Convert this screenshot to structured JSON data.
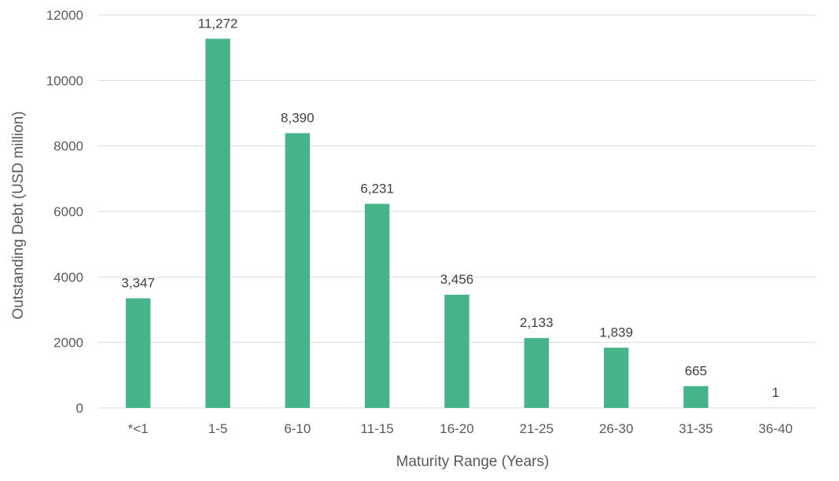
{
  "chart_data": {
    "type": "bar",
    "title": "",
    "xlabel": "Maturity Range (Years)",
    "ylabel": "Outstanding  Debt (USD million)",
    "categories": [
      "*<1",
      "1-5",
      "6-10",
      "11-15",
      "16-20",
      "21-25",
      "26-30",
      "31-35",
      "36-40"
    ],
    "values": [
      3347,
      11272,
      8390,
      6231,
      3456,
      2133,
      1839,
      665,
      1
    ],
    "data_labels": [
      "3,347",
      "11,272",
      "8,390",
      "6,231",
      "3,456",
      "2,133",
      "1,839",
      "665",
      "1"
    ],
    "ylim": [
      0,
      12000
    ],
    "yticks": [
      0,
      2000,
      4000,
      6000,
      8000,
      10000,
      12000
    ],
    "ytick_labels": [
      "0",
      "2000",
      "4000",
      "6000",
      "8000",
      "10000",
      "12000"
    ],
    "grid": true,
    "legend": "none",
    "bar_color": "#46b389"
  }
}
